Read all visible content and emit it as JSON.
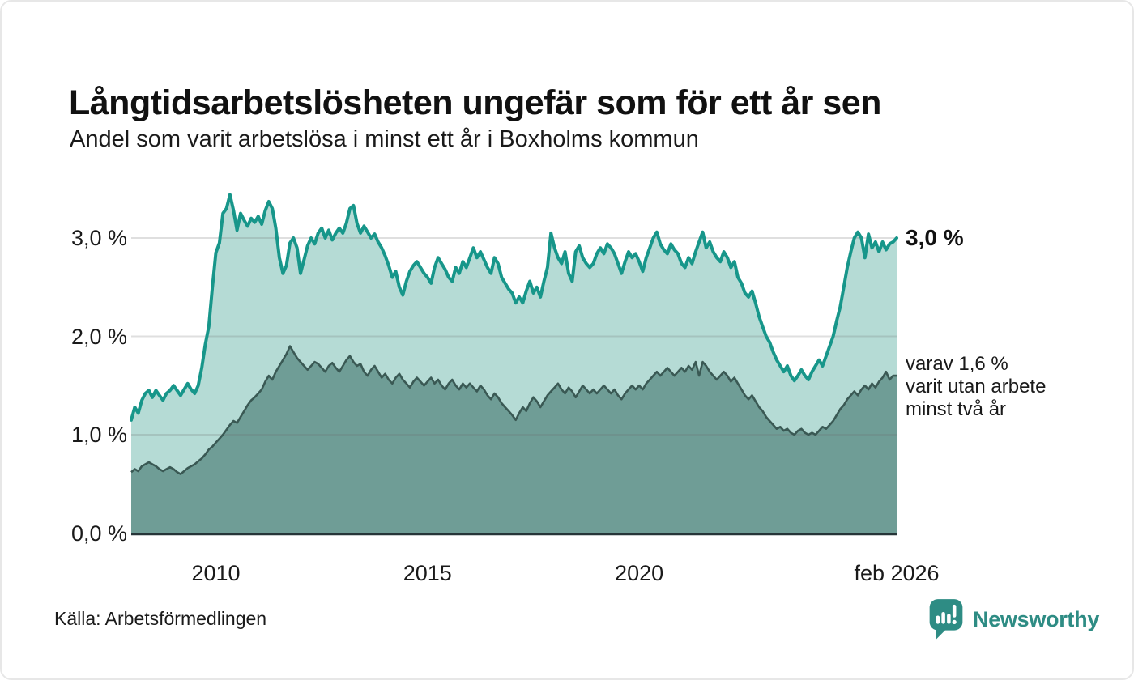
{
  "header": {
    "title": "Långtidsarbetslösheten ungefär som för ett år sen",
    "subtitle": "Andel som varit arbetslösa i minst ett år i Boxholms kommun"
  },
  "annotations": {
    "end_value_label": "3,0 %",
    "side_note": "varav 1,6 %\nvarit utan arbete\nminst två år"
  },
  "footer": {
    "source": "Källa: Arbetsförmedlingen",
    "brand_name": "Newsworthy",
    "brand_icon": "speech-bubble-bar-chart-icon"
  },
  "colors": {
    "line_1yr": "#17968a",
    "fill_1yr": "#b5dbd5",
    "line_2yr": "#3a5954",
    "fill_2yr": "#6f9d96",
    "grid": "rgba(110,110,110,0.22)",
    "baseline": "#263538",
    "brand_teal": "#2e8c84",
    "text": "#1a1a1a"
  },
  "chart_data": {
    "type": "area",
    "title": "Långtidsarbetslösheten ungefär som för ett år sen",
    "subtitle": "Andel som varit arbetslösa i minst ett år i Boxholms kommun",
    "unit": "%",
    "x_start": "2008-01",
    "x_end": "2026-02",
    "x_frequency": "monthly",
    "ylim": [
      0,
      3.55
    ],
    "grid": "on",
    "legend_position": "right-annotations",
    "y_ticks": [
      {
        "value": 0,
        "label": "0,0 %"
      },
      {
        "value": 1,
        "label": "1,0 %"
      },
      {
        "value": 2,
        "label": "2,0 %"
      },
      {
        "value": 3,
        "label": "3,0 %"
      }
    ],
    "x_ticks": [
      {
        "month_index": 24,
        "label": "2010"
      },
      {
        "month_index": 84,
        "label": "2015"
      },
      {
        "month_index": 144,
        "label": "2020"
      },
      {
        "month_index": 217,
        "label": "feb 2026"
      }
    ],
    "series": [
      {
        "name": "Andel arbetslösa minst ett år",
        "last_value_label": "3,0 %",
        "values": [
          1.15,
          1.28,
          1.22,
          1.35,
          1.42,
          1.45,
          1.38,
          1.45,
          1.4,
          1.35,
          1.42,
          1.45,
          1.5,
          1.45,
          1.4,
          1.46,
          1.52,
          1.46,
          1.42,
          1.5,
          1.68,
          1.92,
          2.1,
          2.5,
          2.85,
          2.95,
          3.25,
          3.3,
          3.44,
          3.28,
          3.08,
          3.25,
          3.18,
          3.12,
          3.2,
          3.16,
          3.22,
          3.14,
          3.28,
          3.37,
          3.3,
          3.1,
          2.8,
          2.64,
          2.72,
          2.95,
          3.0,
          2.9,
          2.64,
          2.78,
          2.92,
          3.0,
          2.94,
          3.05,
          3.1,
          3.0,
          3.08,
          2.98,
          3.05,
          3.1,
          3.05,
          3.15,
          3.3,
          3.33,
          3.15,
          3.05,
          3.12,
          3.06,
          3.0,
          3.04,
          2.96,
          2.9,
          2.82,
          2.72,
          2.6,
          2.66,
          2.5,
          2.42,
          2.56,
          2.66,
          2.72,
          2.76,
          2.7,
          2.64,
          2.6,
          2.54,
          2.7,
          2.8,
          2.74,
          2.68,
          2.6,
          2.56,
          2.7,
          2.64,
          2.76,
          2.7,
          2.8,
          2.9,
          2.8,
          2.86,
          2.78,
          2.7,
          2.64,
          2.8,
          2.74,
          2.6,
          2.54,
          2.48,
          2.44,
          2.34,
          2.4,
          2.34,
          2.46,
          2.56,
          2.44,
          2.5,
          2.4,
          2.56,
          2.7,
          3.05,
          2.9,
          2.8,
          2.74,
          2.86,
          2.64,
          2.56,
          2.86,
          2.92,
          2.8,
          2.74,
          2.7,
          2.74,
          2.84,
          2.9,
          2.84,
          2.94,
          2.9,
          2.84,
          2.74,
          2.64,
          2.76,
          2.86,
          2.8,
          2.84,
          2.76,
          2.66,
          2.8,
          2.9,
          3.0,
          3.06,
          2.94,
          2.88,
          2.84,
          2.94,
          2.88,
          2.84,
          2.74,
          2.7,
          2.8,
          2.74,
          2.86,
          2.96,
          3.06,
          2.9,
          2.96,
          2.86,
          2.8,
          2.76,
          2.86,
          2.8,
          2.7,
          2.76,
          2.6,
          2.54,
          2.44,
          2.4,
          2.46,
          2.34,
          2.2,
          2.1,
          2.0,
          1.94,
          1.84,
          1.76,
          1.7,
          1.64,
          1.7,
          1.6,
          1.55,
          1.6,
          1.66,
          1.6,
          1.56,
          1.64,
          1.7,
          1.76,
          1.7,
          1.8,
          1.9,
          2.0,
          2.16,
          2.3,
          2.5,
          2.7,
          2.86,
          3.0,
          3.06,
          3.0,
          2.8,
          3.04,
          2.9,
          2.96,
          2.86,
          2.96,
          2.88,
          2.94,
          2.96,
          3.0
        ]
      },
      {
        "name": "varav utan arbete minst två år",
        "last_value_label": "1,6 %",
        "values": [
          0.62,
          0.65,
          0.63,
          0.68,
          0.7,
          0.72,
          0.7,
          0.68,
          0.65,
          0.63,
          0.65,
          0.67,
          0.65,
          0.62,
          0.6,
          0.63,
          0.66,
          0.68,
          0.7,
          0.73,
          0.76,
          0.8,
          0.85,
          0.88,
          0.92,
          0.96,
          1.0,
          1.05,
          1.1,
          1.14,
          1.12,
          1.18,
          1.24,
          1.3,
          1.35,
          1.38,
          1.42,
          1.46,
          1.54,
          1.6,
          1.56,
          1.64,
          1.7,
          1.76,
          1.82,
          1.9,
          1.84,
          1.78,
          1.74,
          1.7,
          1.66,
          1.7,
          1.74,
          1.72,
          1.68,
          1.64,
          1.7,
          1.73,
          1.68,
          1.64,
          1.7,
          1.76,
          1.8,
          1.74,
          1.7,
          1.72,
          1.64,
          1.6,
          1.66,
          1.7,
          1.64,
          1.58,
          1.62,
          1.56,
          1.52,
          1.58,
          1.62,
          1.56,
          1.52,
          1.48,
          1.54,
          1.58,
          1.54,
          1.5,
          1.54,
          1.58,
          1.52,
          1.56,
          1.5,
          1.46,
          1.52,
          1.56,
          1.5,
          1.46,
          1.52,
          1.48,
          1.52,
          1.48,
          1.44,
          1.5,
          1.46,
          1.4,
          1.36,
          1.42,
          1.38,
          1.32,
          1.28,
          1.24,
          1.2,
          1.15,
          1.22,
          1.28,
          1.24,
          1.32,
          1.38,
          1.34,
          1.28,
          1.34,
          1.4,
          1.44,
          1.48,
          1.52,
          1.46,
          1.42,
          1.48,
          1.44,
          1.38,
          1.44,
          1.5,
          1.46,
          1.42,
          1.46,
          1.42,
          1.46,
          1.5,
          1.46,
          1.42,
          1.46,
          1.4,
          1.36,
          1.42,
          1.46,
          1.5,
          1.46,
          1.5,
          1.46,
          1.52,
          1.56,
          1.6,
          1.64,
          1.6,
          1.64,
          1.68,
          1.64,
          1.6,
          1.64,
          1.68,
          1.64,
          1.7,
          1.66,
          1.74,
          1.6,
          1.74,
          1.7,
          1.64,
          1.6,
          1.56,
          1.6,
          1.64,
          1.6,
          1.54,
          1.58,
          1.52,
          1.46,
          1.4,
          1.36,
          1.4,
          1.34,
          1.28,
          1.24,
          1.18,
          1.14,
          1.1,
          1.06,
          1.08,
          1.04,
          1.06,
          1.02,
          1.0,
          1.04,
          1.06,
          1.02,
          1.0,
          1.02,
          1.0,
          1.04,
          1.08,
          1.06,
          1.1,
          1.14,
          1.2,
          1.26,
          1.3,
          1.36,
          1.4,
          1.44,
          1.4,
          1.46,
          1.5,
          1.46,
          1.52,
          1.48,
          1.54,
          1.58,
          1.64,
          1.56,
          1.6,
          1.6
        ]
      }
    ]
  }
}
